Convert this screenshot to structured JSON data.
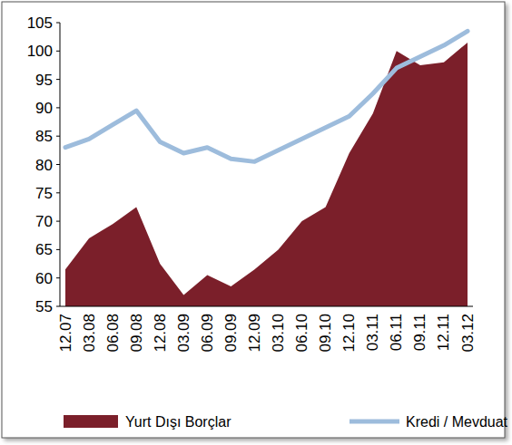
{
  "chart_data": {
    "type": "line",
    "categories": [
      "12.07",
      "03.08",
      "06.08",
      "09.08",
      "12.08",
      "03.09",
      "06.09",
      "09.09",
      "12.09",
      "03.10",
      "06.10",
      "09.10",
      "12.10",
      "03.11",
      "06.11",
      "09.11",
      "12.11",
      "03.12"
    ],
    "series": [
      {
        "name": "Yurt Dışı Borçlar",
        "type": "area",
        "color": "#7b1f2a",
        "values": [
          61.5,
          67,
          69.5,
          72.5,
          62.5,
          57,
          60.5,
          58.5,
          61.5,
          65,
          70,
          72.5,
          82,
          89,
          100,
          97.5,
          98,
          101.5
        ]
      },
      {
        "name": "Kredi / Mevduat",
        "type": "line",
        "color": "#9dbcdc",
        "values": [
          83,
          84.5,
          87,
          89.5,
          84,
          82,
          83,
          81,
          80.5,
          82.5,
          84.5,
          86.5,
          88.5,
          92.5,
          97,
          99,
          101,
          103.5
        ]
      }
    ],
    "ylim": [
      55,
      105
    ],
    "yticks": [
      55,
      60,
      65,
      70,
      75,
      80,
      85,
      90,
      95,
      100,
      105
    ],
    "grid": false,
    "legend": "bottom"
  }
}
